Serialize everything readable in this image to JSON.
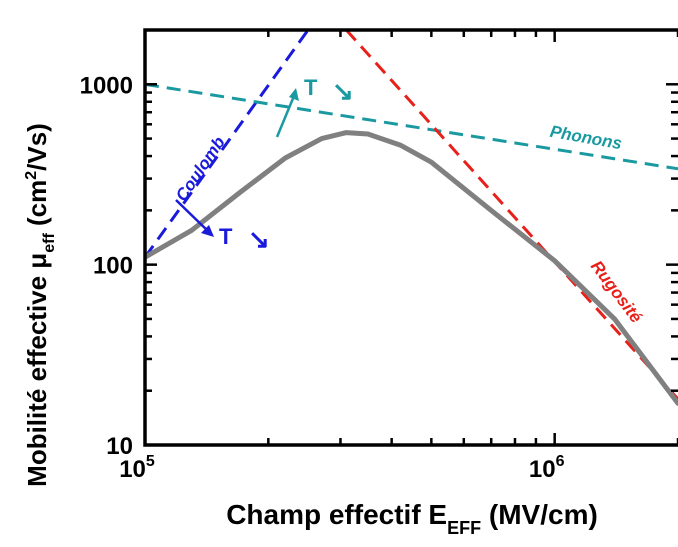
{
  "chart_data": {
    "type": "line",
    "title": "",
    "xlabel": {
      "main": "Champ effectif  E",
      "sub": "EFF",
      "unit": " (MV/cm)"
    },
    "ylabel": {
      "main": "Mobilité effective  μ",
      "sub": "eff",
      "unit_open": " (cm",
      "sup": "2",
      "unit_close": "/Vs)"
    },
    "x_scale": "log",
    "y_scale": "log",
    "xlim": [
      100000,
      2000000
    ],
    "ylim": [
      10,
      2000
    ],
    "x_ticks": [
      {
        "value": 100000,
        "base": "10",
        "exp": "5"
      },
      {
        "value": 1000000,
        "base": "10",
        "exp": "6"
      }
    ],
    "y_ticks": [
      {
        "value": 10,
        "label": "10"
      },
      {
        "value": 100,
        "label": "100"
      },
      {
        "value": 1000,
        "label": "1000"
      }
    ],
    "grid": false,
    "series": [
      {
        "name": "Coulomb",
        "style": "dashed",
        "color": "#1a1adb",
        "points": [
          [
            100000,
            110
          ],
          [
            250000,
            2000
          ]
        ]
      },
      {
        "name": "Phonons",
        "style": "dashed",
        "color": "#1a9aa0",
        "points": [
          [
            100000,
            1000
          ],
          [
            2000000,
            340
          ]
        ]
      },
      {
        "name": "Rugosité",
        "style": "dashed",
        "color": "#e8201a",
        "points": [
          [
            310000,
            2000
          ],
          [
            2000000,
            18
          ]
        ]
      },
      {
        "name": "",
        "style": "solid",
        "color": "#808080",
        "points": [
          [
            100000,
            110
          ],
          [
            130000,
            155
          ],
          [
            170000,
            250
          ],
          [
            220000,
            390
          ],
          [
            270000,
            500
          ],
          [
            310000,
            540
          ],
          [
            350000,
            530
          ],
          [
            420000,
            460
          ],
          [
            500000,
            370
          ],
          [
            700000,
            200
          ],
          [
            1000000,
            105
          ],
          [
            1400000,
            50
          ],
          [
            2000000,
            17
          ]
        ]
      }
    ],
    "annotations": [
      {
        "text": "T",
        "arrow": "↘",
        "color": "#1a1adb"
      },
      {
        "text": "T",
        "arrow": "↘",
        "color": "#1a9aa0"
      }
    ]
  }
}
